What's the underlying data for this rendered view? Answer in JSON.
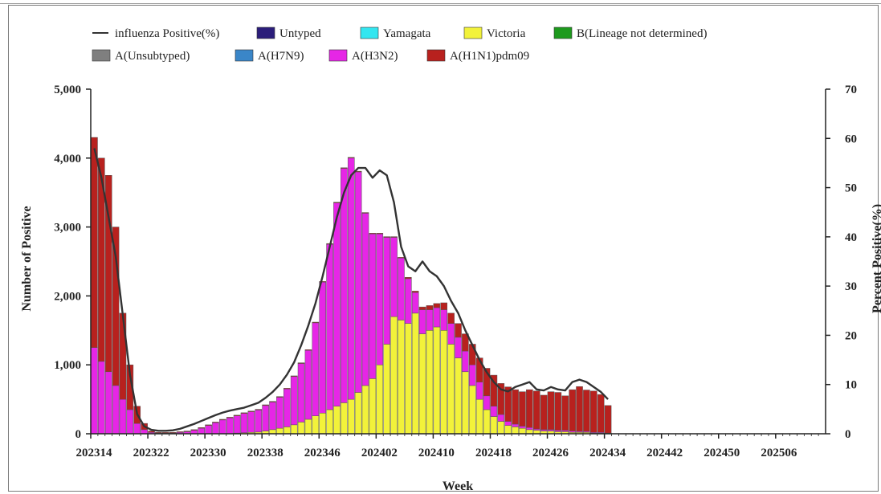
{
  "chart_data": {
    "type": "bar",
    "stacked": true,
    "xlabel": "Week",
    "ylabel": "Number of Positive",
    "y2label": "Percent Positive(%)",
    "ylim": [
      0,
      5000
    ],
    "y2lim": [
      0,
      70
    ],
    "yticks": [
      "0",
      "1,000",
      "2,000",
      "3,000",
      "4,000",
      "5,000"
    ],
    "y2ticks": [
      "0",
      "10",
      "20",
      "30",
      "40",
      "50",
      "60",
      "70"
    ],
    "xtick_labels": [
      "202314",
      "202322",
      "202330",
      "202338",
      "202346",
      "202402",
      "202410",
      "202418",
      "202426",
      "202434",
      "202442",
      "202450",
      "202506"
    ],
    "x_start_week": "202314",
    "num_week_slots": 103,
    "legend_position": "top",
    "legend": [
      {
        "name": "influenza Positive(%)",
        "kind": "line",
        "color": "#333333"
      },
      {
        "name": "Untyped",
        "kind": "box",
        "color": "#2b1d7a"
      },
      {
        "name": "Yamagata",
        "kind": "box",
        "color": "#33e6f0"
      },
      {
        "name": "Victoria",
        "kind": "box",
        "color": "#f2f23a"
      },
      {
        "name": "B(Lineage not determined)",
        "kind": "box",
        "color": "#1d9a1d"
      },
      {
        "name": "A(Unsubtyped)",
        "kind": "box",
        "color": "#7f7f7f"
      },
      {
        "name": "A(H7N9)",
        "kind": "box",
        "color": "#3a86c8"
      },
      {
        "name": "A(H3N2)",
        "kind": "box",
        "color": "#e626e6"
      },
      {
        "name": "A(H1N1)pdm09",
        "kind": "box",
        "color": "#b8211e"
      }
    ],
    "series": [
      {
        "name": "Victoria",
        "color": "#f2f23a",
        "values": [
          0,
          0,
          0,
          0,
          0,
          0,
          0,
          0,
          0,
          0,
          0,
          0,
          0,
          0,
          0,
          0,
          0,
          0,
          0,
          0,
          10,
          15,
          20,
          25,
          40,
          60,
          80,
          100,
          130,
          170,
          210,
          260,
          300,
          350,
          400,
          450,
          500,
          600,
          700,
          800,
          1000,
          1300,
          1700,
          1650,
          1600,
          1750,
          1450,
          1500,
          1550,
          1500,
          1300,
          1100,
          900,
          700,
          500,
          350,
          250,
          180,
          120,
          100,
          80,
          60,
          50,
          40,
          40,
          30,
          30,
          20,
          20,
          20,
          10,
          10,
          5
        ],
        "note": "weekly counts from 202314"
      },
      {
        "name": "A(H3N2)",
        "color": "#e626e6",
        "values": [
          1250,
          1050,
          900,
          700,
          500,
          350,
          150,
          60,
          20,
          10,
          10,
          10,
          20,
          30,
          50,
          80,
          120,
          160,
          200,
          230,
          250,
          280,
          300,
          320,
          370,
          400,
          450,
          550,
          700,
          850,
          1000,
          1350,
          1900,
          2400,
          2950,
          3400,
          3500,
          3200,
          2500,
          2100,
          1900,
          1550,
          1150,
          900,
          650,
          300,
          350,
          300,
          280,
          300,
          300,
          300,
          300,
          300,
          250,
          200,
          150,
          100,
          60,
          40,
          30,
          30,
          20,
          20,
          20,
          20,
          20,
          20,
          15,
          15,
          10,
          10,
          5
        ]
      },
      {
        "name": "A(H1N1)pdm09",
        "color": "#b8211e",
        "values": [
          3050,
          2950,
          2850,
          2300,
          1250,
          650,
          250,
          90,
          20,
          10,
          10,
          10,
          10,
          10,
          10,
          10,
          10,
          10,
          10,
          10,
          10,
          10,
          10,
          10,
          10,
          10,
          10,
          10,
          10,
          10,
          10,
          10,
          10,
          10,
          10,
          10,
          10,
          10,
          10,
          10,
          10,
          10,
          10,
          10,
          20,
          20,
          40,
          60,
          60,
          100,
          150,
          200,
          250,
          300,
          350,
          400,
          450,
          450,
          500,
          500,
          500,
          550,
          550,
          500,
          550,
          550,
          500,
          600,
          650,
          600,
          600,
          550,
          400
        ]
      },
      {
        "name": "A(Unsubtyped)",
        "color": "#7f7f7f",
        "values": [
          0,
          0,
          0,
          0,
          0,
          0,
          0,
          0,
          0,
          0,
          0,
          0,
          0,
          0,
          0,
          0,
          0,
          0,
          0,
          0,
          0,
          0,
          0,
          0,
          0,
          0,
          0,
          0,
          0,
          0,
          0,
          0,
          0,
          0,
          0,
          0,
          0,
          0,
          0,
          0,
          0,
          0,
          0,
          0,
          0,
          0,
          0,
          0,
          0,
          0,
          0,
          0,
          0,
          0,
          0,
          0,
          0,
          0,
          0,
          0,
          0,
          0,
          0,
          0,
          0,
          0,
          0,
          0,
          0,
          0,
          0,
          0,
          0
        ]
      }
    ],
    "line": {
      "name": "influenza Positive(%)",
      "axis": "y2",
      "color": "#333333",
      "values": [
        58,
        52,
        44,
        36,
        24,
        12,
        4,
        1.5,
        0.8,
        0.6,
        0.6,
        0.7,
        1,
        1.5,
        2,
        2.6,
        3.2,
        3.8,
        4.3,
        4.7,
        5,
        5.3,
        5.8,
        6.3,
        7.3,
        8.5,
        10,
        12,
        14.5,
        18,
        22,
        26.5,
        32,
        38,
        44,
        49,
        52.5,
        54,
        54,
        52,
        53.5,
        52.5,
        47,
        38,
        34,
        33,
        35,
        33,
        32,
        30,
        27,
        24.5,
        21,
        18,
        15,
        12.5,
        10.5,
        9,
        8.6,
        9.5,
        10,
        10.5,
        9,
        8.8,
        9.5,
        9,
        8.8,
        10.5,
        11,
        10.5,
        9.5,
        8.5,
        7
      ]
    }
  }
}
